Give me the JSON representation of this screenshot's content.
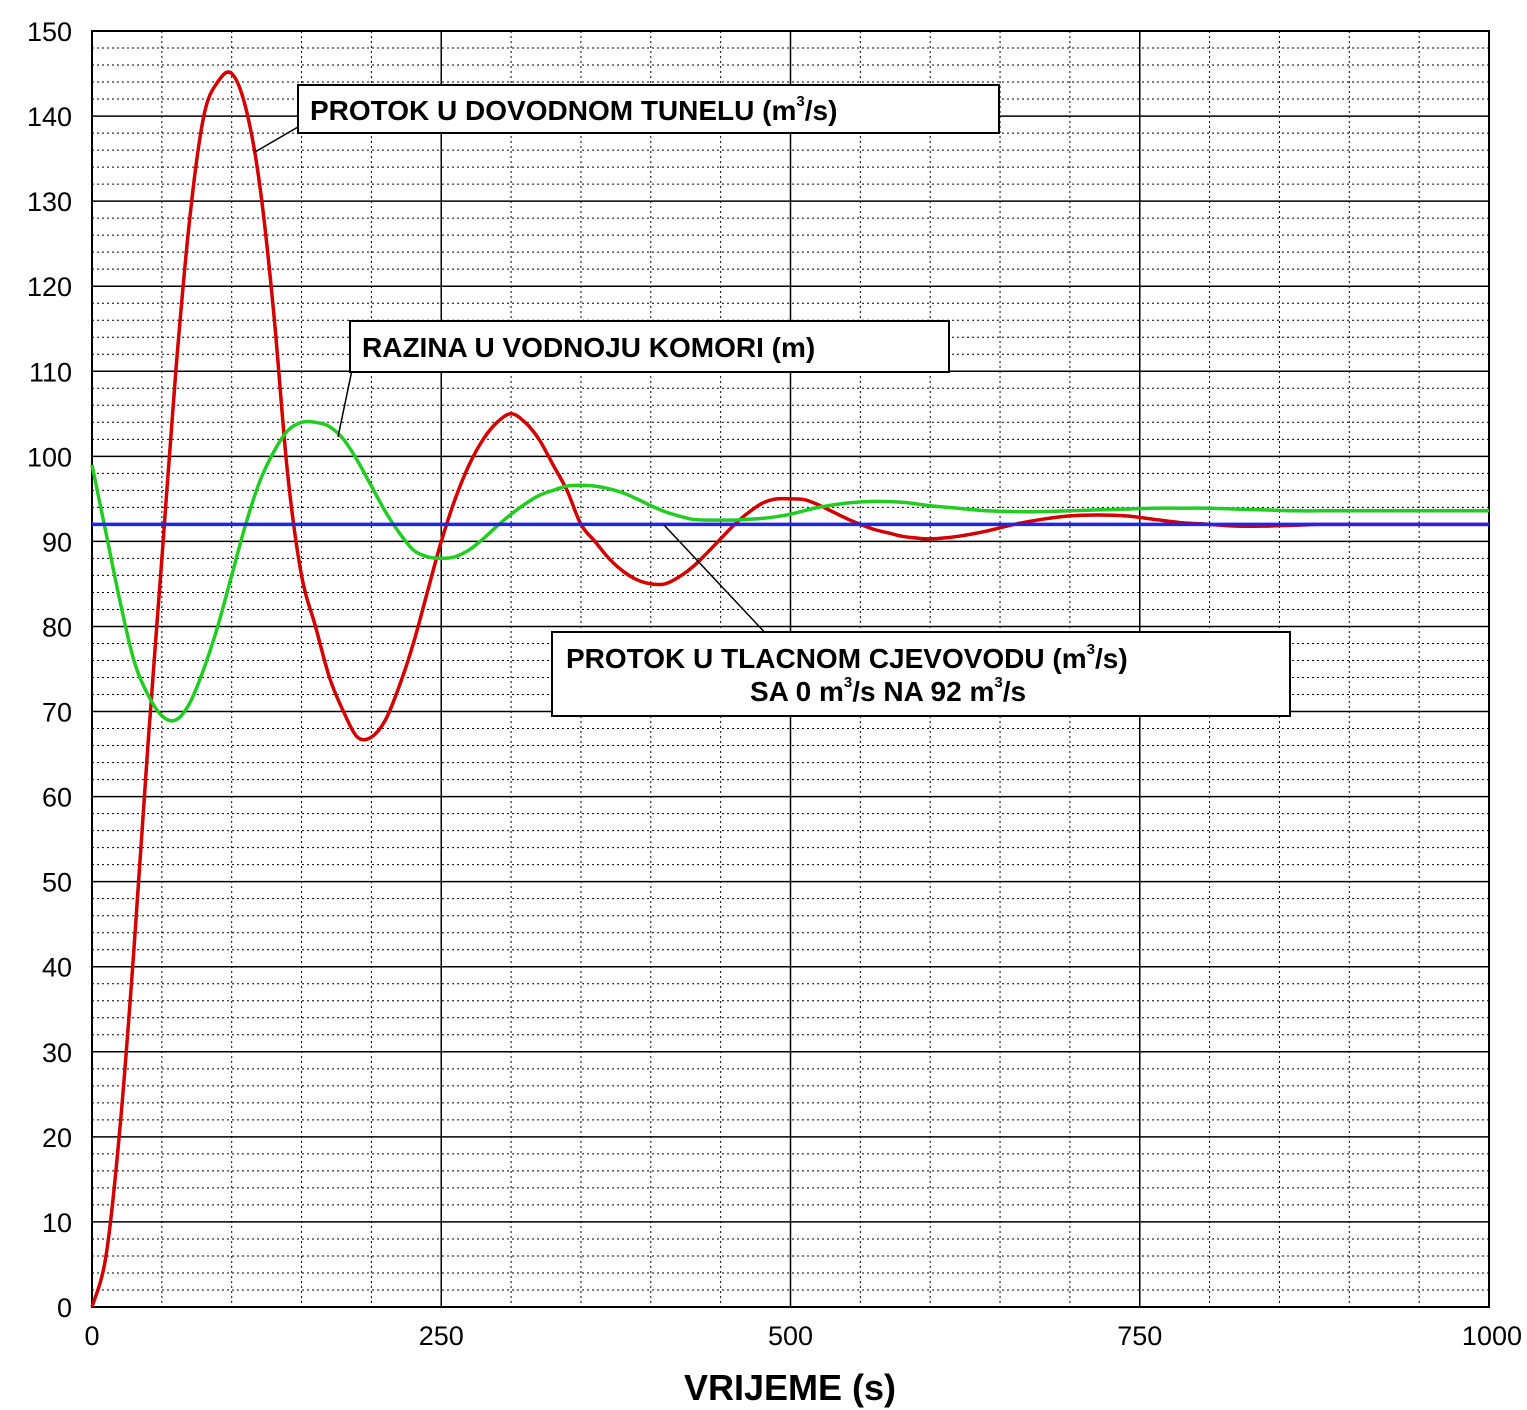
{
  "chart_data": {
    "type": "line",
    "xlabel": "VRIJEME (s)",
    "ylabel": "",
    "title": "",
    "xlim": [
      0,
      1000
    ],
    "ylim": [
      0,
      150
    ],
    "x_ticks": [
      0,
      250,
      500,
      750,
      1000
    ],
    "y_ticks": [
      0,
      10,
      20,
      30,
      40,
      50,
      60,
      70,
      80,
      90,
      100,
      110,
      120,
      130,
      140,
      150
    ],
    "grid": {
      "major": true,
      "minor": true,
      "minor_style": "dotted"
    },
    "series": [
      {
        "color": "#d40000",
        "x": [
          0,
          10,
          20,
          30,
          40,
          50,
          60,
          70,
          80,
          90,
          100,
          110,
          120,
          130,
          140,
          150,
          160,
          170,
          180,
          190,
          200,
          210,
          220,
          230,
          240,
          250,
          260,
          270,
          280,
          290,
          300,
          310,
          320,
          330,
          340,
          350,
          360,
          370,
          380,
          390,
          400,
          410,
          420,
          430,
          440,
          450,
          460,
          470,
          480,
          490,
          500,
          510,
          520,
          530,
          540,
          550,
          560,
          570,
          580,
          590,
          600,
          620,
          640,
          660,
          680,
          700,
          720,
          740,
          760,
          780,
          800,
          820,
          840,
          860,
          880,
          900,
          920,
          940,
          960,
          980,
          1000
        ],
        "y": [
          0,
          6,
          21,
          42,
          66,
          88,
          110,
          128,
          140,
          144,
          145,
          141,
          132,
          117,
          98,
          86,
          80,
          74,
          70,
          67,
          67,
          69,
          73,
          78,
          84,
          90,
          95,
          99,
          102,
          104,
          105,
          104,
          102,
          99,
          96,
          92,
          90,
          88,
          86.5,
          85.5,
          85,
          85,
          85.8,
          87,
          88.6,
          90.3,
          92,
          93.4,
          94.5,
          95,
          95,
          94.9,
          94.3,
          93.5,
          92.7,
          92,
          91.4,
          91,
          90.6,
          90.4,
          90.3,
          90.6,
          91.2,
          92,
          92.6,
          93,
          93.1,
          93,
          92.6,
          92.2,
          92,
          91.8,
          91.8,
          91.9,
          92,
          92,
          92,
          92,
          92,
          92,
          92
        ]
      },
      {
        "color": "#22cc22",
        "x": [
          0,
          10,
          20,
          30,
          40,
          50,
          60,
          70,
          80,
          90,
          100,
          110,
          120,
          130,
          140,
          150,
          160,
          170,
          180,
          190,
          200,
          210,
          220,
          230,
          240,
          250,
          260,
          270,
          280,
          290,
          300,
          310,
          320,
          330,
          340,
          350,
          360,
          370,
          380,
          390,
          400,
          410,
          420,
          430,
          440,
          450,
          460,
          470,
          480,
          490,
          500,
          520,
          540,
          560,
          580,
          600,
          620,
          640,
          660,
          680,
          700,
          720,
          740,
          760,
          780,
          800,
          820,
          840,
          860,
          880,
          900,
          920,
          940,
          960,
          980,
          1000
        ],
        "y": [
          99,
          91,
          83,
          76,
          72,
          69.5,
          69,
          71,
          75,
          80,
          86,
          92,
          97,
          100.5,
          103,
          104,
          104,
          103.5,
          102,
          99.5,
          96.5,
          93.5,
          91,
          89,
          88.2,
          88,
          88.2,
          89,
          90.3,
          91.8,
          93.2,
          94.4,
          95.4,
          96,
          96.5,
          96.6,
          96.5,
          96.2,
          95.7,
          95,
          94.2,
          93.5,
          93,
          92.6,
          92.5,
          92.5,
          92.5,
          92.6,
          92.7,
          92.9,
          93.2,
          94,
          94.5,
          94.7,
          94.6,
          94.2,
          93.9,
          93.6,
          93.5,
          93.5,
          93.6,
          93.7,
          93.8,
          93.9,
          93.9,
          93.9,
          93.8,
          93.7,
          93.6,
          93.6,
          93.6,
          93.6,
          93.6,
          93.6,
          93.6,
          93.6
        ]
      },
      {
        "color": "#2323ee",
        "x": [
          0,
          1000
        ],
        "y": [
          92,
          92
        ]
      }
    ],
    "annotations": [
      {
        "line1": "PROTOK U DOVODNOM TUNELU (m",
        "sup1": "3",
        "line1_end": "/s)"
      },
      {
        "line1": "RAZINA U VODNOJU KOMORI (m)"
      },
      {
        "line1": "PROTOK U TLACNOM CJEVOVODU (m",
        "sup1": "3",
        "line1_end": "/s)",
        "line2": "SA 0 m",
        "sup2": "3",
        "line2_mid": "/s NA 92 m",
        "sup3": "3",
        "line2_end": "/s"
      }
    ]
  }
}
